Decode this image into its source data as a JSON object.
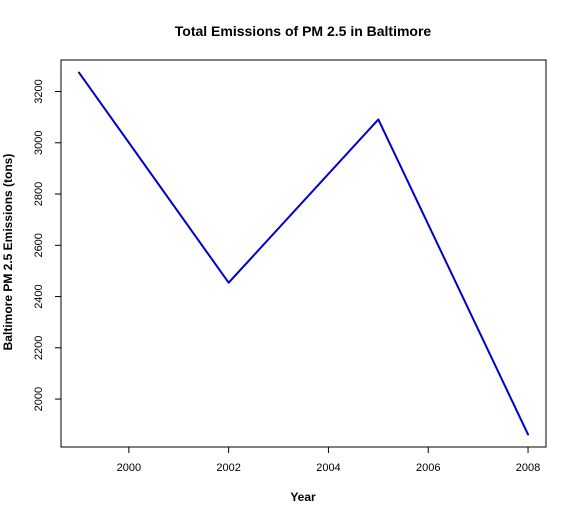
{
  "chart_data": {
    "type": "line",
    "title": "Total Emissions of PM 2.5 in Baltimore",
    "xlabel": "Year",
    "ylabel": "Baltimore PM 2.5 Emissions (tons)",
    "x": [
      1999,
      2002,
      2005,
      2008
    ],
    "series": [
      {
        "values": [
          3274,
          2454,
          3091,
          1862
        ]
      }
    ],
    "x_ticks": [
      2000,
      2002,
      2004,
      2006,
      2008
    ],
    "y_ticks": [
      2000,
      2200,
      2400,
      2600,
      2800,
      3000,
      3200
    ],
    "xlim": [
      1998.64,
      2008.36
    ],
    "ylim": [
      1813,
      3323
    ],
    "grid": false,
    "line_color": "#0000cc"
  }
}
